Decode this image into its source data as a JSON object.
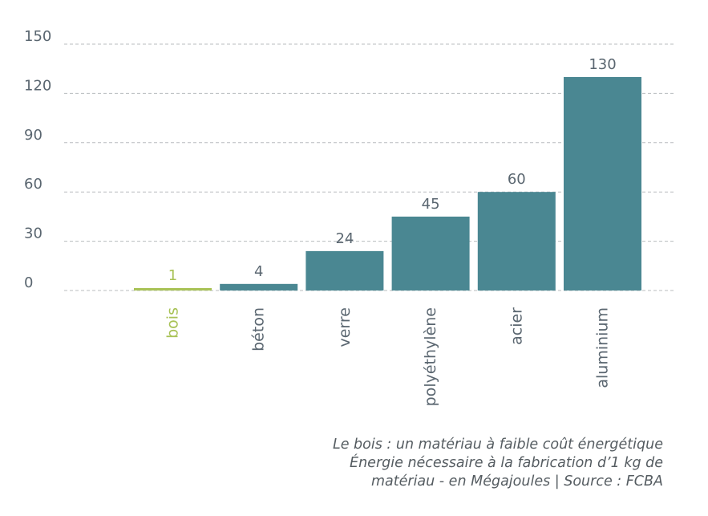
{
  "chart_data": {
    "type": "bar",
    "categories": [
      "bois",
      "béton",
      "verre",
      "polyéthylène",
      "acier",
      "aluminium"
    ],
    "values": [
      1,
      4,
      24,
      45,
      60,
      130
    ],
    "data_labels": [
      "1",
      "4",
      "24",
      "45",
      "60",
      "130"
    ],
    "ylim": [
      0,
      150
    ],
    "yticks": [
      0,
      30,
      60,
      90,
      120,
      150
    ],
    "ytick_labels": [
      "0",
      "30",
      "60",
      "90",
      "120",
      "150"
    ],
    "grid": true,
    "colors": {
      "highlight": "#a8c256",
      "bar": "#4a8792",
      "text": "#5a6670",
      "grid": "#b8bcbf"
    },
    "highlight_category": "bois"
  },
  "caption": {
    "line1": "Le bois : un matériau à faible coût énergétique",
    "line2": "Énergie nécessaire à la fabrication d’1 kg de",
    "line3": "matériau - en Mégajoules | Source : FCBA"
  }
}
